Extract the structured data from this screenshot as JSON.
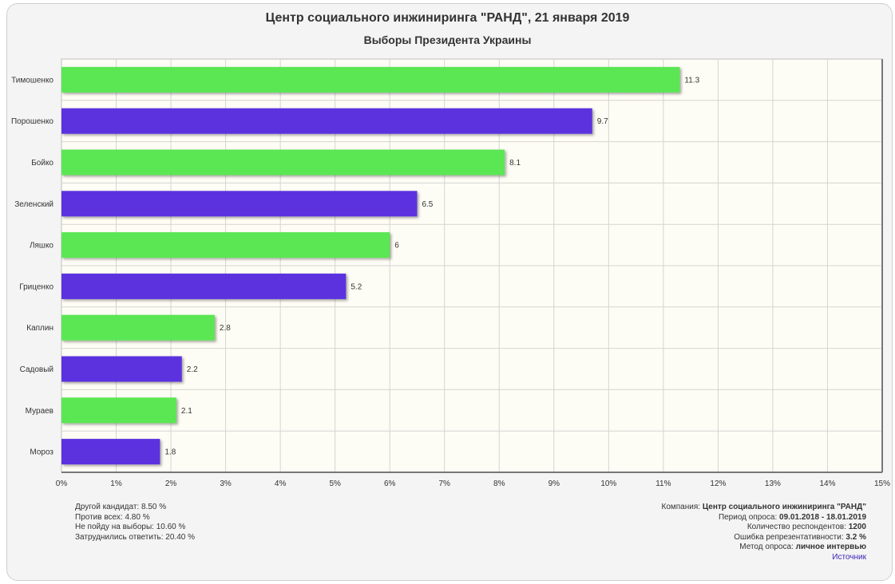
{
  "title": "Центр социального инжиниринга \"РАНД\", 21 января 2019",
  "subtitle": "Выборы Президента Украины",
  "colors": {
    "green": "#5ae752",
    "purple": "#5b31df",
    "plot_bg": "#fefdf5",
    "grid": "#cfcfcf"
  },
  "chart_data": {
    "type": "bar",
    "orientation": "horizontal",
    "categories": [
      "Тимошенко",
      "Порошенко",
      "Бойко",
      "Зеленский",
      "Ляшко",
      "Гриценко",
      "Каплин",
      "Садовый",
      "Мураев",
      "Мороз"
    ],
    "values": [
      11.3,
      9.7,
      8.1,
      6.5,
      6,
      5.2,
      2.8,
      2.2,
      2.1,
      1.8
    ],
    "value_labels": [
      "11.3",
      "9.7",
      "8.1",
      "6.5",
      "6",
      "5.2",
      "2.8",
      "2.2",
      "2.1",
      "1.8"
    ],
    "bar_colors": [
      "#5ae752",
      "#5b31df",
      "#5ae752",
      "#5b31df",
      "#5ae752",
      "#5b31df",
      "#5ae752",
      "#5b31df",
      "#5ae752",
      "#5b31df"
    ],
    "xlim": [
      0,
      15
    ],
    "x_ticks": [
      "0%",
      "1%",
      "2%",
      "3%",
      "4%",
      "5%",
      "6%",
      "7%",
      "8%",
      "9%",
      "10%",
      "11%",
      "12%",
      "13%",
      "14%",
      "15%"
    ],
    "grid": true
  },
  "notes_left": [
    "Другой кандидат: 8.50 %",
    "Против всех: 4.80 %",
    "Не пойду на выборы: 10.60 %",
    "Затруднились ответить: 20.40 %"
  ],
  "notes_right": {
    "company_label": "Компания:",
    "company_value": "Центр социального инжиниринга \"РАНД\"",
    "period_label": "Период опроса:",
    "period_value": "09.01.2018 - 18.01.2019",
    "respondents_label": "Количество респондентов:",
    "respondents_value": "1200",
    "error_label": "Ошибка репрезентативности:",
    "error_value": "3.2 %",
    "method_label": "Метод опроса:",
    "method_value": "личное интервью",
    "source_link": "Источник"
  }
}
